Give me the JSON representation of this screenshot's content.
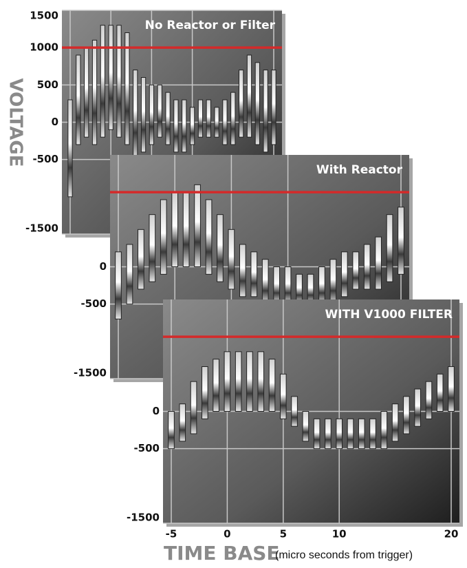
{
  "chart_data": [
    {
      "type": "band",
      "title": "No Reactor or Filter",
      "y_label": "VOLTAGE",
      "x": [
        -5,
        -4,
        -3,
        -2,
        -1,
        0,
        1,
        2,
        3,
        4,
        5,
        6,
        7,
        8,
        9,
        10,
        11,
        12,
        13,
        14,
        15,
        16,
        17,
        18,
        19,
        20
      ],
      "high": [
        300,
        900,
        1000,
        1100,
        1300,
        1300,
        1300,
        1200,
        700,
        600,
        500,
        500,
        400,
        300,
        300,
        200,
        300,
        300,
        200,
        300,
        400,
        700,
        900,
        800,
        700,
        700
      ],
      "low": [
        -1000,
        -300,
        -200,
        -300,
        -200,
        -100,
        -200,
        -300,
        -500,
        -400,
        -300,
        -200,
        -300,
        -400,
        -400,
        -300,
        -200,
        -200,
        -200,
        -300,
        -300,
        -200,
        -200,
        -300,
        -400,
        -300
      ],
      "xlim": [
        -5,
        20
      ],
      "ylim": [
        -1500,
        1500
      ],
      "yticks": [
        1500,
        1000,
        500,
        0,
        -500,
        -1500
      ],
      "reference_line": 1000,
      "reference_color": "#d42a2a",
      "grid": true
    },
    {
      "type": "band",
      "title": "With Reactor",
      "x": [
        -5,
        -4,
        -3,
        -2,
        -1,
        0,
        1,
        2,
        3,
        4,
        5,
        6,
        7,
        8,
        9,
        10,
        11,
        12,
        13,
        14,
        15,
        16,
        17,
        18,
        19,
        20
      ],
      "high": [
        200,
        300,
        500,
        700,
        900,
        1000,
        1000,
        1100,
        900,
        700,
        500,
        300,
        200,
        100,
        0,
        0,
        -100,
        -100,
        0,
        100,
        200,
        200,
        300,
        400,
        700,
        800
      ],
      "low": [
        -700,
        -500,
        -300,
        -200,
        -100,
        0,
        0,
        0,
        -100,
        -200,
        -300,
        -400,
        -400,
        -500,
        -500,
        -500,
        -500,
        -500,
        -500,
        -500,
        -400,
        -300,
        -300,
        -300,
        -200,
        -100
      ],
      "xlim": [
        -5,
        20
      ],
      "ylim": [
        -1500,
        1500
      ],
      "yticks": [
        0,
        -500,
        -1500
      ],
      "reference_line": 1000,
      "reference_color": "#d42a2a",
      "grid": true
    },
    {
      "type": "band",
      "title": "WITH V1000 FILTER",
      "x_label": "TIME BASE",
      "x_label_note": "(micro seconds from trigger)",
      "x": [
        -5,
        -4,
        -3,
        -2,
        -1,
        0,
        1,
        2,
        3,
        4,
        5,
        6,
        7,
        8,
        9,
        10,
        11,
        12,
        13,
        14,
        15,
        16,
        17,
        18,
        19,
        20
      ],
      "high": [
        0,
        100,
        400,
        600,
        700,
        800,
        800,
        800,
        800,
        700,
        500,
        200,
        0,
        -100,
        -100,
        -100,
        -100,
        -100,
        -100,
        0,
        100,
        200,
        300,
        400,
        500,
        600
      ],
      "low": [
        -500,
        -400,
        -300,
        -100,
        0,
        0,
        0,
        0,
        0,
        0,
        -100,
        -200,
        -400,
        -500,
        -500,
        -500,
        -500,
        -500,
        -500,
        -500,
        -400,
        -300,
        -200,
        -100,
        0,
        0
      ],
      "xlim": [
        -5,
        20
      ],
      "ylim": [
        -1500,
        1500
      ],
      "yticks": [
        0,
        -500,
        -1500
      ],
      "xticks": [
        -5,
        0,
        5,
        10,
        20
      ],
      "reference_line": 1000,
      "reference_color": "#d42a2a",
      "grid": true
    }
  ]
}
